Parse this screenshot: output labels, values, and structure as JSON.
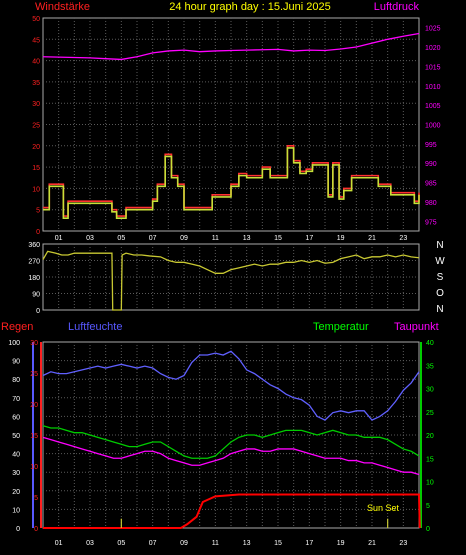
{
  "header": {
    "wind_label": "Windstärke",
    "title": "24 hour graph day : 15.Juni 2025",
    "pressure_label": "Luftdruck"
  },
  "compass_labels": [
    "N",
    "W",
    "S",
    "O",
    "N"
  ],
  "lower_labels": {
    "rain": "Regen",
    "humidity": "Luftfeuchte",
    "temperature": "Temperatur",
    "dewpoint": "Taupunkt",
    "sunset": "Sun Set"
  },
  "colors": {
    "grid": "#5a5a5a",
    "wind": "#ff3030",
    "pressure": "#ff00ff",
    "gust": "#c8e038",
    "direction": "#c8c832",
    "humidity": "#6060ff",
    "temperature": "#00cc00",
    "dewpoint": "#ff00ff",
    "rain": "#ff0000",
    "label_yellow": "#ffff00",
    "label_red": "#ff2020",
    "label_blue": "#5858ff",
    "label_green": "#00ff00"
  },
  "chart_data": [
    {
      "type": "line",
      "id": "wind_pressure",
      "x_ticks": [
        "01",
        "03",
        "05",
        "07",
        "09",
        "11",
        "13",
        "15",
        "17",
        "19",
        "21",
        "23"
      ],
      "left_ticks": [
        "50",
        "45",
        "40",
        "35",
        "30",
        "25",
        "20",
        "15",
        "10",
        "5",
        "0"
      ],
      "right_ticks": [
        "1025",
        "1020",
        "1015",
        "1010",
        "1005",
        "1000",
        "995",
        "990",
        "985",
        "980",
        "975"
      ],
      "ylim_left": [
        0,
        50
      ],
      "ylim_right": [
        972.5,
        1027.5
      ],
      "xlim": [
        0,
        24
      ],
      "series": [
        {
          "key": "pressure",
          "axis": "right",
          "x": [
            0,
            1,
            2,
            3,
            4,
            5,
            6,
            7,
            8,
            9,
            10,
            11,
            12,
            13,
            14,
            15,
            16,
            17,
            18,
            19,
            20,
            21,
            22,
            23,
            24
          ],
          "y": [
            1017.5,
            1017.4,
            1017.3,
            1017.2,
            1017.0,
            1016.8,
            1017.5,
            1018.5,
            1019.0,
            1019.2,
            1018.8,
            1019.0,
            1019.1,
            1019.2,
            1019.3,
            1019.4,
            1019.0,
            1019.2,
            1019.1,
            1019.5,
            1020.0,
            1021.0,
            1022.0,
            1022.8,
            1023.5
          ]
        },
        {
          "key": "wind",
          "axis": "left",
          "step": true,
          "x": [
            0,
            0.4,
            1.3,
            1.6,
            2.0,
            4.4,
            4.7,
            5.3,
            6.5,
            7.0,
            7.3,
            7.8,
            8.2,
            8.6,
            9.0,
            10.3,
            10.8,
            11.3,
            12.0,
            12.5,
            13.0,
            14.0,
            14.5,
            15.6,
            16.0,
            16.4,
            16.8,
            17.2,
            18.2,
            18.5,
            18.9,
            19.2,
            19.7,
            20.2,
            21.4,
            22.2,
            23.0,
            23.7,
            24.0
          ],
          "y": [
            5.5,
            11,
            3.5,
            7,
            7,
            5,
            3.5,
            5.5,
            5.5,
            7.5,
            11,
            18,
            13,
            11,
            5.5,
            5.5,
            8.5,
            8.5,
            11,
            13.5,
            13,
            15,
            13,
            20,
            16.5,
            14,
            14.5,
            16,
            8.5,
            16,
            8,
            10,
            13,
            13,
            11,
            9,
            9,
            7,
            9
          ]
        },
        {
          "key": "gust",
          "axis": "left",
          "step": true,
          "x": [
            0,
            0.4,
            1.3,
            1.6,
            2.0,
            4.4,
            4.7,
            5.3,
            6.5,
            7.0,
            7.3,
            7.8,
            8.2,
            8.6,
            9.0,
            10.3,
            10.8,
            11.3,
            12.0,
            12.5,
            13.0,
            14.0,
            14.5,
            15.6,
            16.0,
            16.4,
            16.8,
            17.2,
            18.2,
            18.5,
            18.9,
            19.2,
            19.7,
            20.2,
            21.4,
            22.2,
            23.0,
            23.7,
            24.0
          ],
          "y": [
            5,
            10.5,
            3,
            6.5,
            6.5,
            4.5,
            3,
            5,
            5,
            7,
            10.5,
            17.5,
            12.5,
            10.5,
            5,
            5,
            8,
            8,
            10.5,
            13,
            12.5,
            14.5,
            12.5,
            19.5,
            16,
            13.5,
            14,
            15.5,
            8,
            15.5,
            7.5,
            9.5,
            12.5,
            12.5,
            10.5,
            8.5,
            8.5,
            6.5,
            8.5
          ]
        }
      ]
    },
    {
      "type": "line",
      "id": "wind_direction",
      "left_ticks": [
        "360",
        "270",
        "180",
        "90",
        "0"
      ],
      "ylim": [
        0,
        360
      ],
      "xlim": [
        0,
        24
      ],
      "series": [
        {
          "key": "direction",
          "x": [
            0,
            0.3,
            0.8,
            1.2,
            1.6,
            2.0,
            2.5,
            3.0,
            3.5,
            4.0,
            4.4,
            4.45,
            4.5,
            4.9,
            5.0,
            5.05,
            5.3,
            5.8,
            6.3,
            6.8,
            7.5,
            8.0,
            8.5,
            9.0,
            9.5,
            10.0,
            10.5,
            11.0,
            11.5,
            12.0,
            12.5,
            13.0,
            13.5,
            14.0,
            14.5,
            15.0,
            15.5,
            16.0,
            16.5,
            17.0,
            17.5,
            18.0,
            18.5,
            19.0,
            19.5,
            20.0,
            20.5,
            21.0,
            21.5,
            22.0,
            22.5,
            23.0,
            23.5,
            24.0
          ],
          "y": [
            275,
            320,
            310,
            300,
            300,
            310,
            310,
            310,
            310,
            310,
            310,
            0,
            0,
            0,
            0,
            300,
            310,
            300,
            300,
            295,
            290,
            270,
            260,
            260,
            250,
            240,
            220,
            200,
            200,
            220,
            230,
            240,
            250,
            240,
            250,
            250,
            260,
            260,
            270,
            260,
            270,
            255,
            260,
            280,
            290,
            300,
            280,
            290,
            290,
            300,
            290,
            300,
            290,
            285
          ]
        }
      ]
    },
    {
      "type": "line",
      "id": "climate",
      "x_ticks": [
        "01",
        "03",
        "05",
        "07",
        "09",
        "11",
        "13",
        "15",
        "17",
        "19",
        "21",
        "23"
      ],
      "rain_ticks": [
        "100",
        "90",
        "80",
        "70",
        "60",
        "50",
        "40",
        "30",
        "20",
        "10",
        "0"
      ],
      "red_ticks": [
        "30",
        "25",
        "20",
        "15",
        "10",
        "5",
        "0"
      ],
      "right_ticks": [
        "40",
        "35",
        "30",
        "25",
        "20",
        "15",
        "10",
        "5",
        "0"
      ],
      "ylim_rain": [
        0,
        100
      ],
      "ylim_red": [
        0,
        30
      ],
      "ylim_right": [
        0,
        40
      ],
      "xlim": [
        0,
        24
      ],
      "series": [
        {
          "key": "humidity",
          "axis": "rain",
          "x": [
            0,
            0.5,
            1.0,
            1.5,
            2.0,
            2.5,
            3.0,
            3.5,
            4.0,
            4.5,
            5.0,
            5.5,
            6.0,
            6.5,
            7.0,
            7.5,
            8.0,
            8.5,
            9.0,
            9.5,
            10.0,
            10.5,
            11.0,
            11.5,
            12.0,
            12.5,
            13.0,
            13.5,
            14.0,
            14.5,
            15.0,
            15.5,
            16.0,
            16.5,
            17.0,
            17.5,
            18.0,
            18.5,
            19.0,
            19.5,
            20.0,
            20.5,
            21.0,
            21.5,
            22.0,
            22.5,
            23.0,
            23.5,
            24.0
          ],
          "y": [
            82,
            84,
            83,
            83,
            84,
            85,
            86,
            87,
            86,
            87,
            88,
            87,
            86,
            87,
            86,
            83,
            81,
            80,
            82,
            89,
            93,
            93,
            94,
            93,
            95,
            91,
            85,
            83,
            80,
            77,
            75,
            72,
            70,
            69,
            66,
            60,
            58,
            62,
            63,
            62,
            63,
            63,
            58,
            60,
            63,
            68,
            74,
            78,
            84
          ]
        },
        {
          "key": "temperature",
          "axis": "right",
          "x": [
            0,
            0.5,
            1.0,
            1.5,
            2.0,
            2.5,
            3.0,
            3.5,
            4.0,
            4.5,
            5.0,
            5.5,
            6.0,
            6.5,
            7.0,
            7.5,
            8.0,
            8.5,
            9.0,
            9.5,
            10.0,
            10.5,
            11.0,
            11.5,
            12.0,
            12.5,
            13.0,
            13.5,
            14.0,
            14.5,
            15.0,
            15.5,
            16.0,
            16.5,
            17.0,
            17.5,
            18.0,
            18.5,
            19.0,
            19.5,
            20.0,
            20.5,
            21.0,
            21.5,
            22.0,
            22.5,
            23.0,
            23.5,
            24.0
          ],
          "y": [
            22,
            21.5,
            21.5,
            21,
            20.5,
            20.5,
            20,
            19.5,
            19,
            18.5,
            18,
            17.5,
            17.5,
            18,
            18.5,
            18.5,
            17.5,
            16.5,
            15.5,
            15,
            15,
            15,
            15.5,
            17,
            18.5,
            19.5,
            20,
            20,
            19.5,
            20,
            20.5,
            21,
            21,
            21,
            20.5,
            20,
            20.5,
            21,
            20.5,
            20,
            20,
            19.5,
            19.5,
            19.5,
            19,
            18,
            17,
            16.5,
            15.5
          ]
        },
        {
          "key": "dewpoint",
          "axis": "right",
          "x": [
            0,
            0.5,
            1.0,
            1.5,
            2.0,
            2.5,
            3.0,
            3.5,
            4.0,
            4.5,
            5.0,
            5.5,
            6.0,
            6.5,
            7.0,
            7.5,
            8.0,
            8.5,
            9.0,
            9.5,
            10.0,
            10.5,
            11.0,
            11.5,
            12.0,
            12.5,
            13.0,
            13.5,
            14.0,
            14.5,
            15.0,
            15.5,
            16.0,
            16.5,
            17.0,
            17.5,
            18.0,
            18.5,
            19.0,
            19.5,
            20.0,
            20.5,
            21.0,
            21.5,
            22.0,
            22.5,
            23.0,
            23.5,
            24.0
          ],
          "y": [
            19.5,
            19,
            18.5,
            18,
            17.5,
            17,
            16.5,
            16,
            15.5,
            15,
            15,
            15.5,
            16,
            16.5,
            16.5,
            16,
            15,
            14.5,
            14,
            13.5,
            13.5,
            14,
            14.5,
            15,
            16,
            16.5,
            17,
            17,
            16.5,
            16.5,
            17,
            17,
            17,
            16.5,
            16,
            15.5,
            15,
            15,
            15,
            14.5,
            14.5,
            14,
            14,
            13.5,
            13,
            12.5,
            12,
            12,
            11.5
          ]
        },
        {
          "key": "rain",
          "axis": "rain",
          "x": [
            0,
            8.8,
            9.2,
            9.8,
            10.2,
            11.0,
            12.5,
            13.0,
            24.0,
            24.05
          ],
          "y": [
            0,
            0,
            2,
            6,
            14,
            17,
            18,
            18,
            18,
            0
          ]
        },
        {
          "key": "rain_marker1",
          "axis": "rain",
          "x": [
            5.0,
            5.0
          ],
          "y": [
            0,
            5
          ]
        },
        {
          "key": "rain_marker2",
          "axis": "rain",
          "x": [
            22.0,
            22.0
          ],
          "y": [
            0,
            5
          ]
        }
      ]
    }
  ]
}
